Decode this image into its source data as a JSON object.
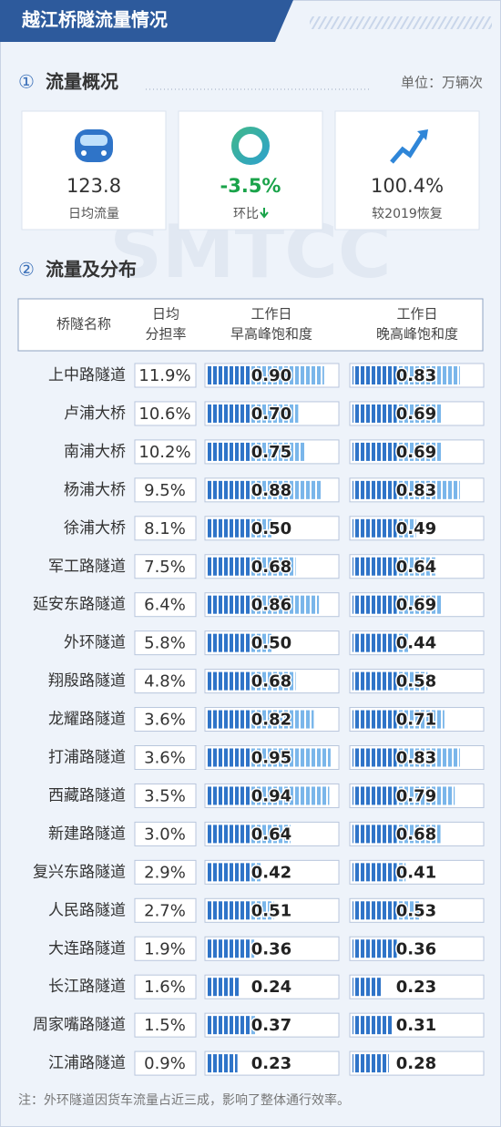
{
  "header": {
    "title": "越江桥隧流量情况"
  },
  "overview": {
    "index": "①",
    "title": "流量概况",
    "unit": "单位：万辆次",
    "cards": [
      {
        "value": "123.8",
        "label": "日均流量"
      },
      {
        "value": "-3.5%",
        "label": "环比"
      },
      {
        "value": "100.4%",
        "label": "较2019恢复"
      }
    ]
  },
  "watermark": "SMTCC",
  "distribution": {
    "index": "②",
    "title": "流量及分布",
    "columns": [
      [
        "桥隧名称"
      ],
      [
        "日均",
        "分担率"
      ],
      [
        "工作日",
        "早高峰饱和度"
      ],
      [
        "工作日",
        "晚高峰饱和度"
      ]
    ],
    "rows": [
      {
        "name": "上中路隧道",
        "share": "11.9%",
        "am": {
          "value": 0.9,
          "label": "0.90"
        },
        "pm": 0.83
      },
      {
        "name": "卢浦大桥",
        "share": "10.6%",
        "am": {
          "value": 0.7,
          "label": "0.70"
        },
        "pm": 0.69
      },
      {
        "name": "南浦大桥",
        "share": "10.2%",
        "am": 0.75,
        "pm": 0.69
      },
      {
        "name": "杨浦大桥",
        "share": "9.5%",
        "am": 0.88,
        "pm": 0.83
      },
      {
        "name": "徐浦大桥",
        "share": "8.1%",
        "am": {
          "value": 0.5,
          "label": "0.50"
        },
        "pm": 0.49
      },
      {
        "name": "军工路隧道",
        "share": "7.5%",
        "am": 0.68,
        "pm": 0.64
      },
      {
        "name": "延安东路隧道",
        "share": "6.4%",
        "am": 0.86,
        "pm": 0.69
      },
      {
        "name": "外环隧道",
        "share": "5.8%",
        "am": {
          "value": 0.5,
          "label": "0.50"
        },
        "pm": 0.44
      },
      {
        "name": "翔殷路隧道",
        "share": "4.8%",
        "am": 0.68,
        "pm": 0.58
      },
      {
        "name": "龙耀路隧道",
        "share": "3.6%",
        "am": 0.82,
        "pm": 0.71
      },
      {
        "name": "打浦路隧道",
        "share": "3.6%",
        "am": 0.95,
        "pm": 0.83
      },
      {
        "name": "西藏路隧道",
        "share": "3.5%",
        "am": 0.94,
        "pm": 0.79
      },
      {
        "name": "新建路隧道",
        "share": "3.0%",
        "am": 0.64,
        "pm": 0.68
      },
      {
        "name": "复兴东路隧道",
        "share": "2.9%",
        "am": 0.42,
        "pm": 0.41
      },
      {
        "name": "人民路隧道",
        "share": "2.7%",
        "am": 0.51,
        "pm": 0.53
      },
      {
        "name": "大连路隧道",
        "share": "1.9%",
        "am": 0.36,
        "pm": 0.36
      },
      {
        "name": "长江路隧道",
        "share": "1.6%",
        "am": 0.24,
        "pm": 0.23
      },
      {
        "name": "周家嘴路隧道",
        "share": "1.5%",
        "am": 0.37,
        "pm": 0.31
      },
      {
        "name": "江浦路隧道",
        "share": "0.9%",
        "am": 0.23,
        "pm": 0.28
      }
    ]
  },
  "note": "注：外环隧道因货车流量占近三成，影响了整体通行效率。"
}
